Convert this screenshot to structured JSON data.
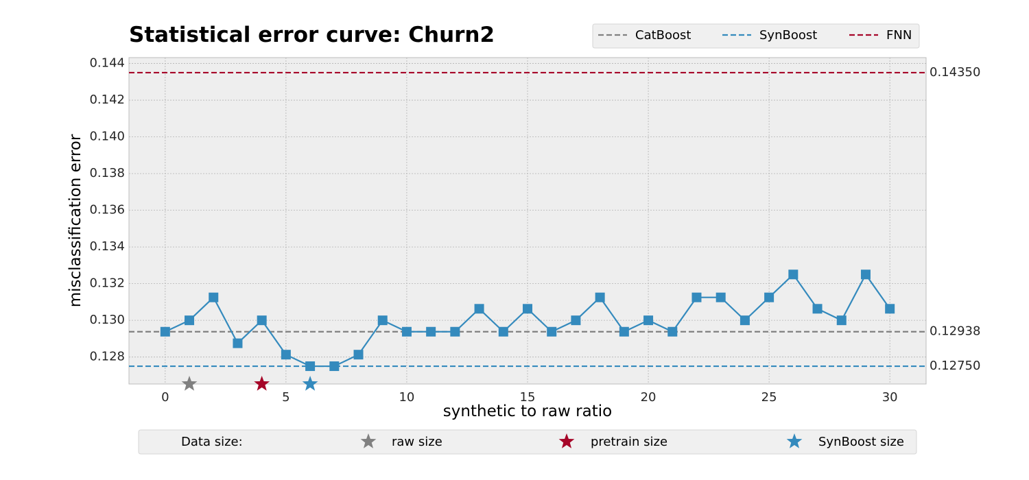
{
  "chart_data": {
    "type": "line",
    "title": "Statistical error curve: Churn2",
    "xlabel": "synthetic to raw ratio",
    "ylabel": "misclassification error",
    "xlim": [
      -1.5,
      31.5
    ],
    "ylim": [
      0.12653,
      0.14432
    ],
    "xticks": [
      0,
      5,
      10,
      15,
      20,
      25,
      30
    ],
    "yticks": [
      "0.128",
      "0.130",
      "0.132",
      "0.134",
      "0.136",
      "0.138",
      "0.140",
      "0.142",
      "0.144"
    ],
    "grid": true,
    "x": [
      0,
      1,
      2,
      3,
      4,
      5,
      6,
      7,
      8,
      9,
      10,
      11,
      12,
      13,
      14,
      15,
      16,
      17,
      18,
      19,
      20,
      21,
      22,
      23,
      24,
      25,
      26,
      27,
      28,
      29,
      30
    ],
    "series": [
      {
        "color": "#348abd",
        "marker": "square",
        "values": [
          0.12938,
          0.13,
          0.13125,
          0.12875,
          0.13,
          0.12813,
          0.1275,
          0.1275,
          0.12813,
          0.13,
          0.12938,
          0.12938,
          0.12938,
          0.13063,
          0.12938,
          0.13063,
          0.12938,
          0.13,
          0.13125,
          0.12938,
          0.13,
          0.12938,
          0.13125,
          0.13125,
          0.13,
          0.13125,
          0.1325,
          0.13063,
          0.13,
          0.1325,
          0.13063
        ]
      }
    ],
    "reference_lines": [
      {
        "name": "CatBoost",
        "value": 0.12938,
        "label": "0.12938",
        "color": "#808080",
        "style": "dashed"
      },
      {
        "name": "SynBoost",
        "value": 0.1275,
        "label": "0.12750",
        "color": "#348abd",
        "style": "dashed"
      },
      {
        "name": "FNN",
        "value": 0.1435,
        "label": "0.14350",
        "color": "#a60628",
        "style": "dashed"
      }
    ],
    "legend_top": {
      "placement": "top-right",
      "entries": [
        {
          "label": "CatBoost",
          "color": "#808080"
        },
        {
          "label": "SynBoost",
          "color": "#348abd"
        },
        {
          "label": "FNN",
          "color": "#a60628"
        }
      ]
    },
    "size_markers": [
      {
        "x": 1,
        "color": "#808080"
      },
      {
        "x": 4,
        "color": "#a60628"
      },
      {
        "x": 6,
        "color": "#348abd"
      }
    ],
    "legend_bottom": {
      "placement": "bottom",
      "heading": "Data size:",
      "entries": [
        {
          "label": "raw size",
          "color": "#808080"
        },
        {
          "label": "pretrain size",
          "color": "#a60628"
        },
        {
          "label": "SynBoost size",
          "color": "#348abd"
        }
      ]
    }
  }
}
